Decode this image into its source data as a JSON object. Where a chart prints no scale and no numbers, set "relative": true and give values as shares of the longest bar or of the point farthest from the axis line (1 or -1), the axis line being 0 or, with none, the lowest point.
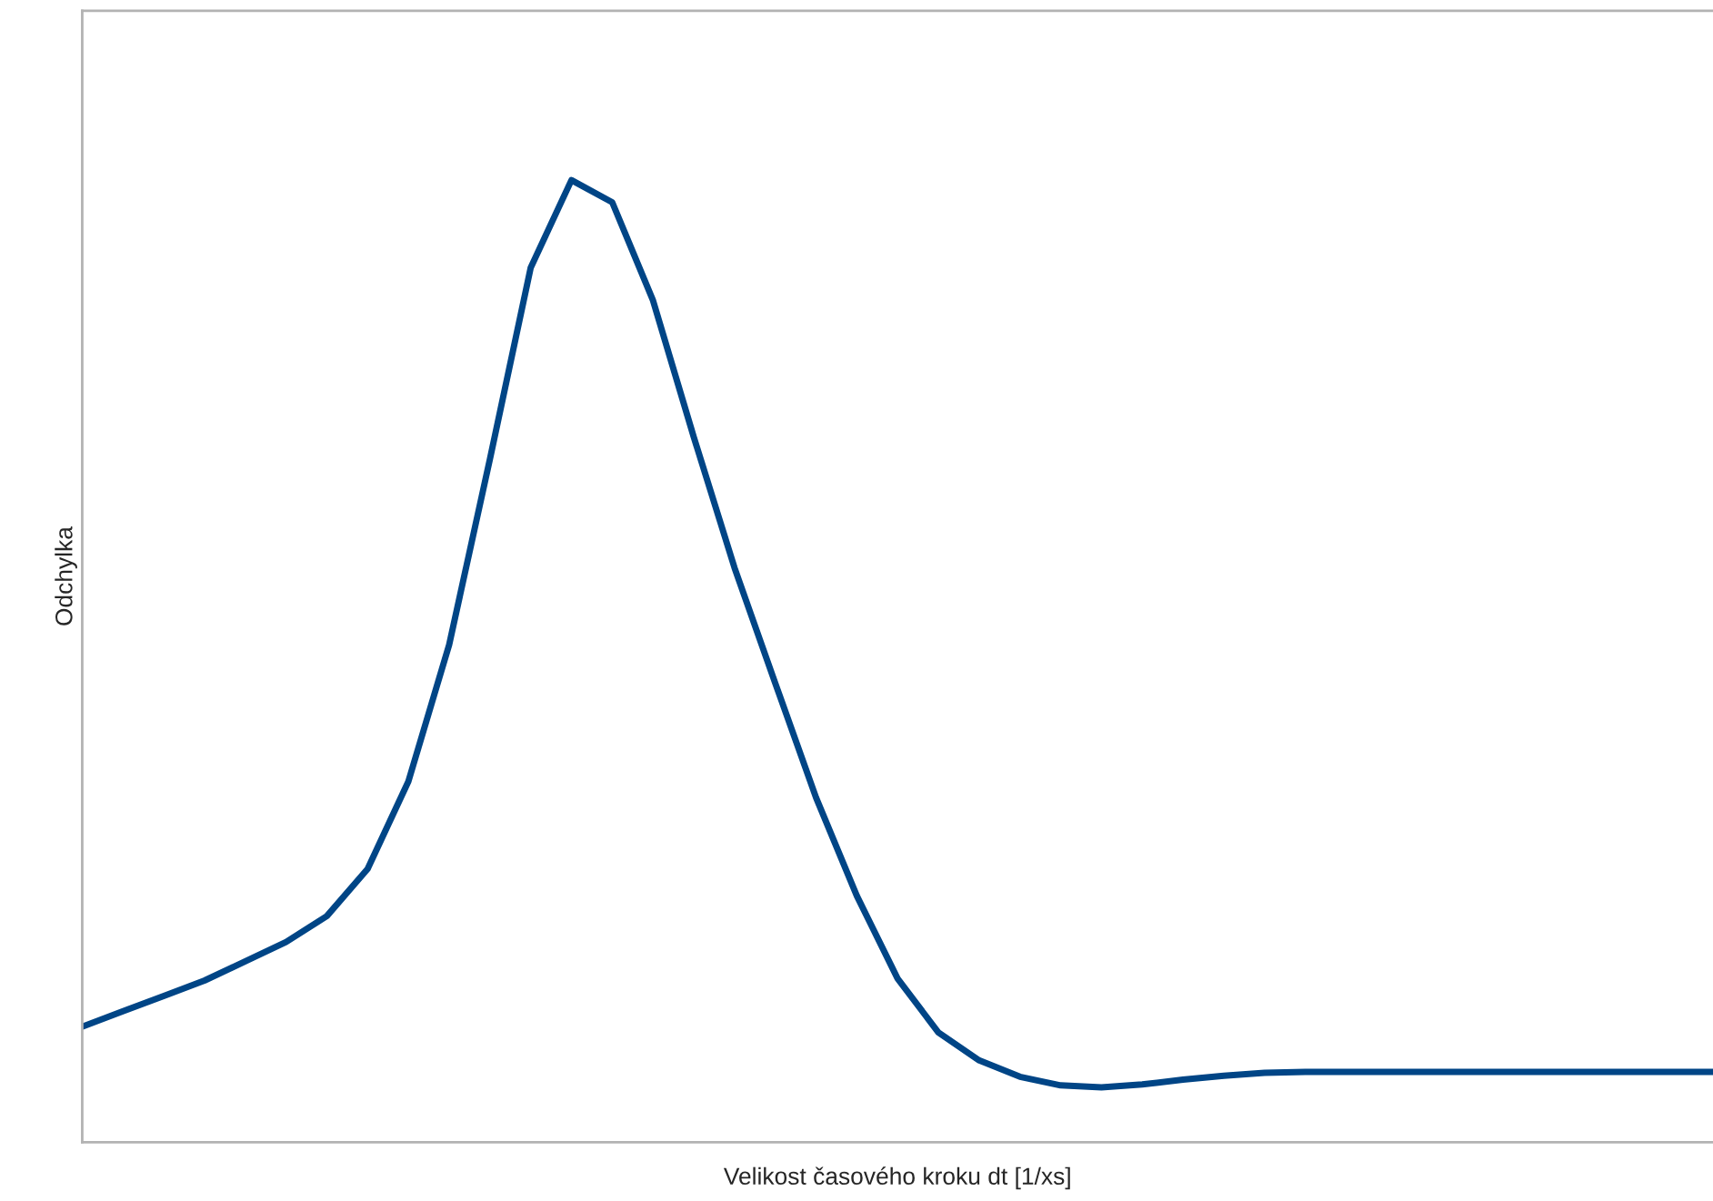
{
  "chart_data": {
    "type": "line",
    "relative": true,
    "xlabel": "Velikost časového kroku dt [1/xs]",
    "ylabel": "Odchylka",
    "categories": [
      null,
      null,
      null,
      null,
      null,
      null,
      null,
      null,
      null,
      null,
      null,
      null,
      null,
      null,
      null,
      null,
      null,
      null,
      null,
      null,
      null,
      null,
      null,
      null,
      null,
      null,
      null,
      null,
      null,
      null,
      null,
      null,
      null,
      null,
      null,
      null,
      null,
      null,
      null,
      null,
      null
    ],
    "series": [
      {
        "color": "#004586",
        "values": [
          0.12,
          0.136,
          0.152,
          0.168,
          0.188,
          0.208,
          0.235,
          0.284,
          0.375,
          0.517,
          0.71,
          0.909,
          1.0,
          0.977,
          0.875,
          0.733,
          0.597,
          0.477,
          0.358,
          0.256,
          0.17,
          0.114,
          0.085,
          0.068,
          0.059,
          0.057,
          0.06,
          0.065,
          0.069,
          0.072,
          0.073,
          0.073,
          0.073,
          0.073,
          0.073,
          0.073,
          0.073,
          0.073,
          0.073,
          0.073,
          0.073
        ]
      }
    ],
    "grid": false,
    "legend": false,
    "marker": "none",
    "line_style": "solid"
  }
}
